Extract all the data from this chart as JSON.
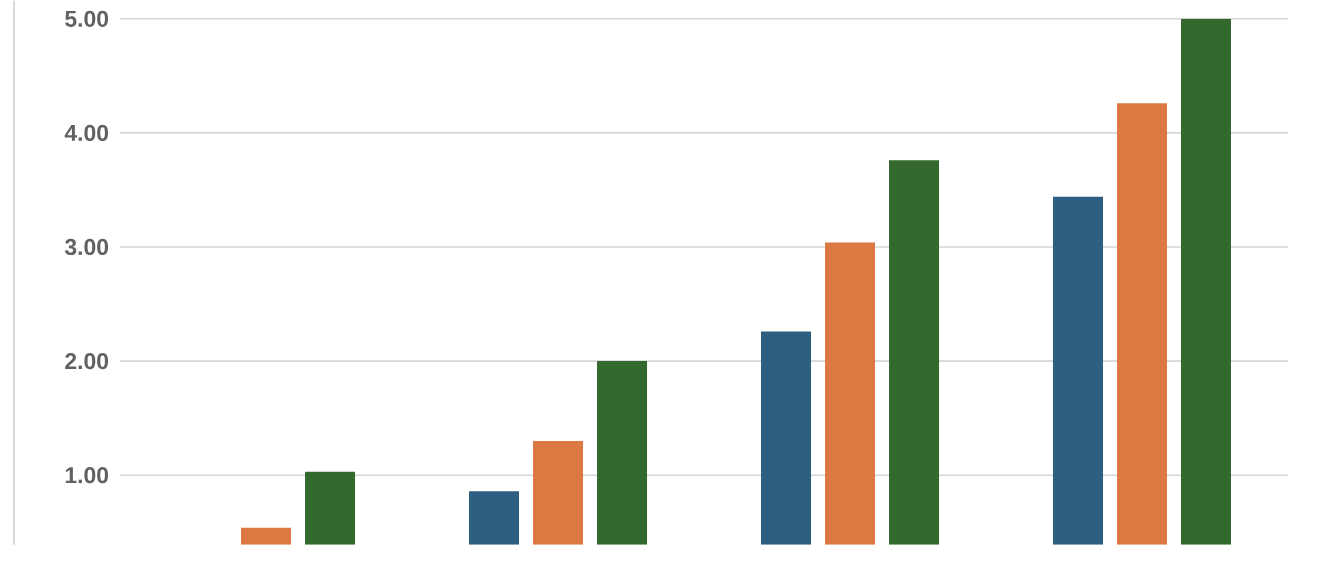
{
  "chart_data": {
    "type": "bar",
    "categories": [
      null,
      null,
      null,
      null
    ],
    "series": [
      {
        "color": "#2e5f80",
        "values": [
          null,
          0.86,
          2.26,
          3.44
        ]
      },
      {
        "color": "#dc7841",
        "values": [
          0.54,
          1.3,
          3.04,
          4.26
        ]
      },
      {
        "color": "#34692e",
        "values": [
          1.03,
          2.0,
          3.76,
          5.0
        ]
      }
    ],
    "ylim": [
      0.39,
      5.0
    ],
    "yticks": [
      {
        "value": 1,
        "label": "1.00"
      },
      {
        "value": 2,
        "label": "2.00"
      },
      {
        "value": 3,
        "label": "3.00"
      },
      {
        "value": 4,
        "label": "4.00"
      },
      {
        "value": 5,
        "label": "5.00"
      }
    ],
    "grid": "y"
  }
}
